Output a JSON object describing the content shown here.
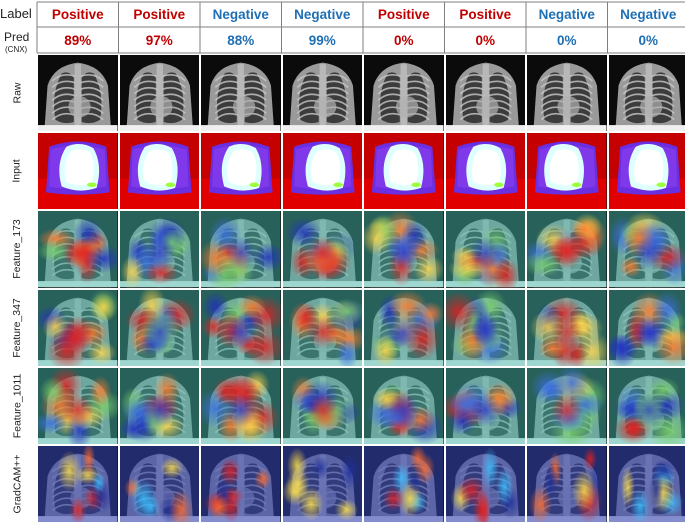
{
  "header": {
    "label_title": "Label",
    "pred_title": "Pred",
    "pred_subtitle": "(CNX)"
  },
  "columns": [
    {
      "label": "Positive",
      "pred": "89%"
    },
    {
      "label": "Positive",
      "pred": "97%"
    },
    {
      "label": "Negative",
      "pred": "88%"
    },
    {
      "label": "Negative",
      "pred": "99%"
    },
    {
      "label": "Positive",
      "pred": "0%"
    },
    {
      "label": "Positive",
      "pred": "0%"
    },
    {
      "label": "Negative",
      "pred": "0%"
    },
    {
      "label": "Negative",
      "pred": "0%"
    }
  ],
  "rows": [
    {
      "label": "Raw",
      "kind": "xray"
    },
    {
      "label": "Input",
      "kind": "input"
    },
    {
      "label": "Feature_173",
      "kind": "feature"
    },
    {
      "label": "Feature_347",
      "kind": "feature"
    },
    {
      "label": "Feature_1011",
      "kind": "feature"
    },
    {
      "label": "GradCAM++",
      "kind": "gradcam"
    }
  ],
  "colors": {
    "positive_text": "#c00000",
    "negative_text": "#1f6fb4",
    "grid_line": "#7f7f7f"
  }
}
